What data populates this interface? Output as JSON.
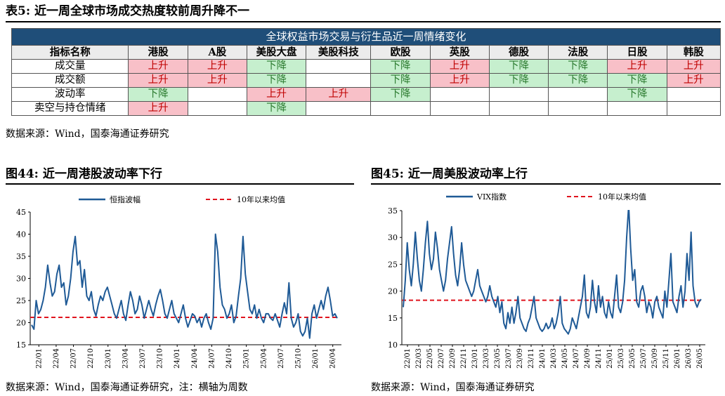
{
  "table": {
    "title": "表5:  近一周全球市场成交热度较前周升降不一",
    "banner": "全球权益市场交易与衍生品近一周情绪变化",
    "columns": [
      "指标名称",
      "港股",
      "A股",
      "美股大盘",
      "美股科技",
      "欧股",
      "英股",
      "德股",
      "法股",
      "日股",
      "韩股"
    ],
    "rows": [
      {
        "label": "成交量",
        "cells": [
          "上升",
          "上升",
          "下降",
          "",
          "下降",
          "上升",
          "下降",
          "下降",
          "上升",
          "上升"
        ]
      },
      {
        "label": "成交额",
        "cells": [
          "上升",
          "上升",
          "下降",
          "",
          "下降",
          "上升",
          "下降",
          "下降",
          "下降",
          "上升"
        ]
      },
      {
        "label": "波动率",
        "cells": [
          "下降",
          "",
          "上升",
          "上升",
          "下降",
          "",
          "",
          "",
          "下降",
          ""
        ]
      },
      {
        "label": "卖空与持仓情绪",
        "cells": [
          "上升",
          "",
          "下降",
          "",
          "",
          "",
          "",
          "",
          "",
          ""
        ]
      }
    ],
    "source": "数据来源：Wind，国泰海通证券研究"
  },
  "colors": {
    "up_bg": "#f8c0c8",
    "up_text": "#c00000",
    "down_bg": "#c6efce",
    "down_text": "#2e7d32",
    "banner": "#1f4e79",
    "series": "#1f5a96",
    "avg": "#e0141e"
  },
  "figures": [
    {
      "title": "图44:  近一周港股波动率下行",
      "source": "数据来源：Wind，国泰海通证券研究，注：横轴为周数",
      "chart_data": {
        "type": "line",
        "series": [
          {
            "name": "恒指波幅",
            "values": [
              19.5,
              18.5,
              25,
              22,
              23,
              25,
              28,
              33,
              29,
              26,
              27,
              31,
              33,
              28,
              29,
              24,
              26,
              30,
              36,
              39.5,
              33,
              34,
              28,
              32,
              26,
              25,
              27,
              23,
              21.5,
              24,
              26,
              25,
              27,
              28,
              26,
              24,
              22,
              21,
              23,
              25,
              22,
              20.5,
              24,
              27,
              25,
              22,
              23,
              26,
              24,
              21,
              23,
              25,
              23,
              21.5,
              24,
              26,
              27.5,
              25,
              22,
              21,
              23,
              25,
              22,
              21,
              20,
              22,
              24,
              21,
              19,
              20.5,
              22,
              21.5,
              20,
              21,
              19,
              21,
              22,
              20,
              18.5,
              21,
              40,
              36,
              28,
              24,
              23,
              21,
              22,
              24,
              20,
              21.5,
              26,
              30,
              39.5,
              31,
              27,
              23,
              22,
              24,
              21,
              23,
              21,
              20,
              22,
              22,
              21,
              20.5,
              22,
              20.5,
              19,
              22,
              24.5,
              22,
              29,
              21,
              19,
              20,
              22,
              18,
              17,
              18,
              21,
              16.5,
              22,
              24,
              21,
              23,
              25,
              23,
              26,
              28,
              25,
              21.5,
              22,
              21
            ]
          },
          {
            "name": "10年以来均值",
            "values": [
              21.2
            ]
          }
        ],
        "y_ticks": [
          15,
          20,
          25,
          30,
          35,
          40,
          45
        ],
        "ylim": [
          15,
          45
        ],
        "x_labels": [
          "22/01",
          "22/04",
          "22/07",
          "22/10",
          "23/01",
          "23/04",
          "23/07",
          "23/10",
          "24/01",
          "24/04",
          "24/07",
          "24/10",
          "25/01",
          "25/04",
          "25/07",
          "25/10",
          "26/01",
          "26/04"
        ]
      }
    },
    {
      "title": "图45:  近一周美股波动率上行",
      "source": "数据来源：Wind，国泰海通证券研究",
      "chart_data": {
        "type": "line",
        "series": [
          {
            "name": "VIX指数",
            "values": [
              17,
              22,
              29,
              24,
              21,
              25,
              31,
              26,
              22,
              20,
              24,
              29,
              33,
              27,
              24,
              26,
              31,
              28,
              24,
              22,
              20,
              22,
              26,
              29,
              32,
              27,
              23,
              21,
              24,
              29,
              25,
              22,
              21,
              20,
              19,
              20,
              22,
              24,
              21,
              20,
              19,
              18,
              19,
              21,
              19,
              18,
              17,
              19,
              16,
              18,
              14,
              13,
              16,
              14,
              17,
              14,
              16,
              19,
              15,
              14,
              13,
              12.5,
              14,
              15,
              17,
              19,
              15,
              14,
              13,
              12.5,
              13,
              14,
              13,
              13.5,
              15,
              13,
              14,
              16,
              19,
              14,
              13,
              12.5,
              12,
              13,
              15,
              14,
              13,
              15,
              17,
              19,
              23,
              16,
              15,
              17,
              22,
              18,
              16,
              21,
              17,
              19,
              16,
              15,
              18,
              16,
              15,
              19,
              23,
              17,
              16,
              18,
              22,
              30,
              36,
              28,
              22,
              24,
              18,
              17,
              20,
              21,
              19,
              16,
              18,
              17,
              15,
              18,
              19,
              17,
              16,
              15,
              20,
              17,
              22,
              27,
              18,
              17,
              16,
              19,
              21,
              17,
              20,
              27,
              22,
              31,
              21,
              18,
              17,
              18,
              18.5
            ]
          },
          {
            "name": "10年以来均值",
            "values": [
              18.3
            ]
          }
        ],
        "y_ticks": [
          10,
          15,
          20,
          25,
          30,
          35
        ],
        "ylim": [
          10,
          35
        ],
        "x_labels": [
          "22/01",
          "22/03",
          "22/05",
          "22/07",
          "22/09",
          "22/11",
          "23/01",
          "23/03",
          "23/05",
          "23/07",
          "23/09",
          "23/11",
          "24/01",
          "24/03",
          "24/05",
          "24/07",
          "24/09",
          "24/11",
          "25/01",
          "25/03",
          "25/05",
          "25/07",
          "25/09",
          "25/11",
          "26/01",
          "26/03",
          "26/05"
        ]
      }
    }
  ]
}
